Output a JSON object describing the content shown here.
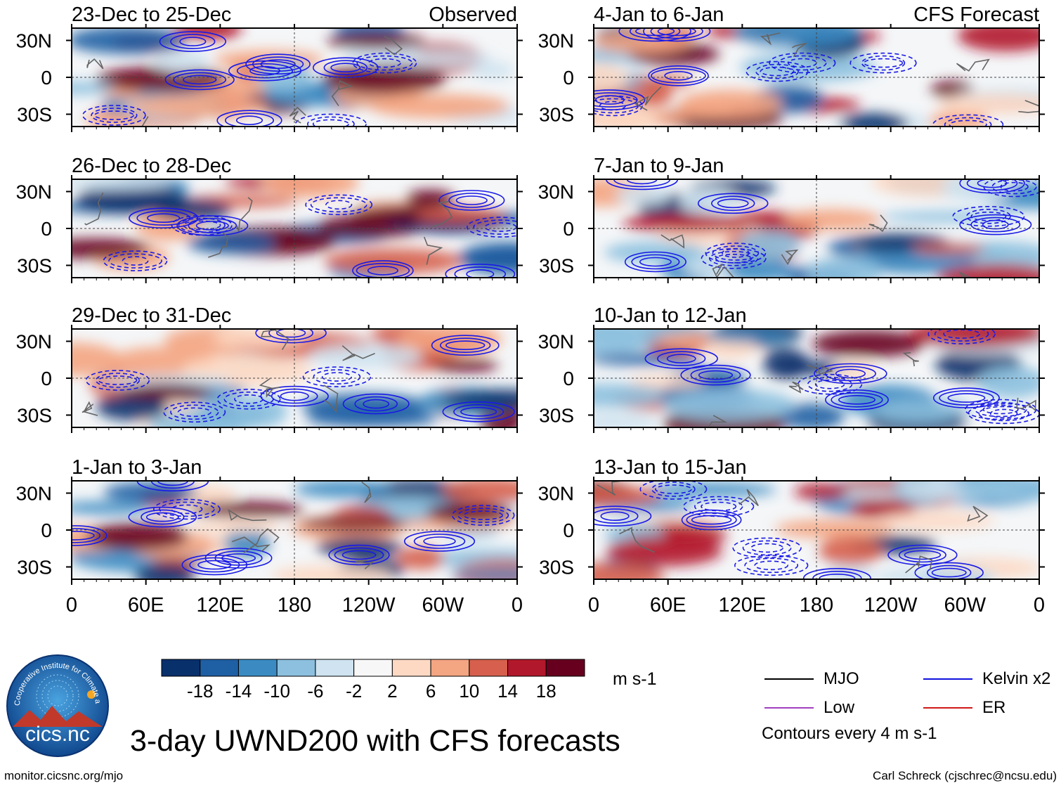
{
  "title": "3-day UWND200 with CFS forecasts",
  "site": "monitor.cicsnc.org/mjo",
  "author": "Carl Schreck (cjschrec@ncsu.edu)",
  "logo": {
    "text": "cics.nc",
    "ring_text": "Cooperative Institute for Climate and Satellites"
  },
  "column_labels": {
    "observed": "Observed",
    "forecast": "CFS Forecast"
  },
  "colorbar": {
    "units": "m s-1",
    "colors": [
      "#08306b",
      "#1f5fa4",
      "#3b8bc2",
      "#8cc0de",
      "#cfe3f0",
      "#f7f7f7",
      "#fdd9c4",
      "#f4a582",
      "#d6604d",
      "#b2182b",
      "#67001f"
    ],
    "tick_labels": [
      "-18",
      "-14",
      "-10",
      "-6",
      "-2",
      "2",
      "6",
      "10",
      "14",
      "18"
    ]
  },
  "legend": {
    "items": [
      {
        "label": "MJO",
        "color": "#000000"
      },
      {
        "label": "Kelvin x2",
        "color": "#1010e0"
      },
      {
        "label": "Low",
        "color": "#a040c0"
      },
      {
        "label": "ER",
        "color": "#d01818"
      }
    ],
    "note": "Contours every 4 m s-1"
  },
  "chart_data": {
    "type": "heatmap",
    "variable": "200-hPa zonal wind (3-day mean)",
    "units": "m s-1",
    "contour_interval": 4,
    "x_ticks": [
      "0",
      "60E",
      "120E",
      "180",
      "120W",
      "60W",
      "0"
    ],
    "y_ticks": [
      "30N",
      "0",
      "30S"
    ],
    "xlim": [
      0,
      360
    ],
    "ylim": [
      -40,
      40
    ],
    "panels": [
      {
        "label": "23-Dec to 25-Dec",
        "kind": "Observed"
      },
      {
        "label": "26-Dec to 28-Dec",
        "kind": "Observed"
      },
      {
        "label": "29-Dec to 31-Dec",
        "kind": "Observed"
      },
      {
        "label": "1-Jan to 3-Jan",
        "kind": "Observed"
      },
      {
        "label": "4-Jan to 6-Jan",
        "kind": "CFS Forecast"
      },
      {
        "label": "7-Jan to 9-Jan",
        "kind": "CFS Forecast"
      },
      {
        "label": "10-Jan to 12-Jan",
        "kind": "CFS Forecast"
      },
      {
        "label": "13-Jan to 15-Jan",
        "kind": "CFS Forecast"
      }
    ]
  }
}
